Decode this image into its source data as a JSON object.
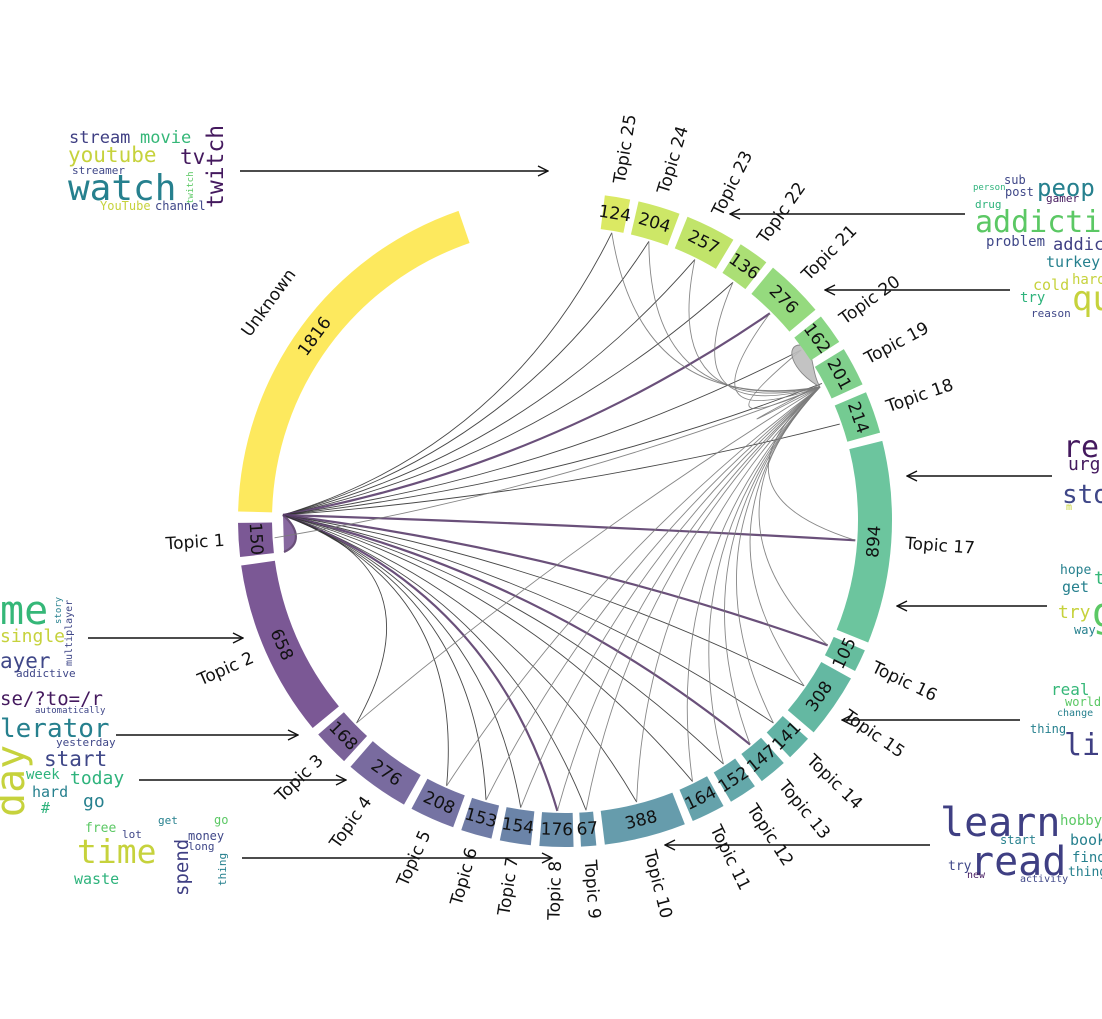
{
  "chart_data": {
    "type": "chord",
    "title": "",
    "segments": [
      {
        "label": "Unknown",
        "count": "1816",
        "color": "#fde95e"
      },
      {
        "label": "Topic 1",
        "count": "150",
        "color": "#7b5895"
      },
      {
        "label": "Topic 2",
        "count": "658",
        "color": "#7b5895"
      },
      {
        "label": "Topic 3",
        "count": "168",
        "color": "#7b6299"
      },
      {
        "label": "Topic 4",
        "count": "276",
        "color": "#796b9f"
      },
      {
        "label": "Topic 5",
        "count": "208",
        "color": "#7573a3"
      },
      {
        "label": "Topic 6",
        "count": "153",
        "color": "#707ca6"
      },
      {
        "label": "Topic 7",
        "count": "154",
        "color": "#6b84a8"
      },
      {
        "label": "Topic 8",
        "count": "176",
        "color": "#688ca9"
      },
      {
        "label": "Topic 9",
        "count": "67",
        "color": "#6694ab"
      },
      {
        "label": "Topic 10",
        "count": "388",
        "color": "#669cac"
      },
      {
        "label": "Topic 11",
        "count": "164",
        "color": "#65a2ab"
      },
      {
        "label": "Topic 12",
        "count": "152",
        "color": "#64a8aa"
      },
      {
        "label": "Topic 13",
        "count": "147",
        "color": "#63aea8"
      },
      {
        "label": "Topic 14",
        "count": "141",
        "color": "#62b3a5"
      },
      {
        "label": "Topic 15",
        "count": "308",
        "color": "#64b8a2"
      },
      {
        "label": "Topic 16",
        "count": "105",
        "color": "#66bd9e"
      },
      {
        "label": "Topic 17",
        "count": "894",
        "color": "#6cc59e"
      },
      {
        "label": "Topic 18",
        "count": "214",
        "color": "#74cb92"
      },
      {
        "label": "Topic 19",
        "count": "201",
        "color": "#80d08c"
      },
      {
        "label": "Topic 20",
        "count": "162",
        "color": "#8ad685"
      },
      {
        "label": "Topic 21",
        "count": "276",
        "color": "#95da7e"
      },
      {
        "label": "Topic 22",
        "count": "136",
        "color": "#abdf75"
      },
      {
        "label": "Topic 23",
        "count": "257",
        "color": "#c1e46a"
      },
      {
        "label": "Topic 24",
        "count": "204",
        "color": "#cde767"
      },
      {
        "label": "Topic 25",
        "count": "124",
        "color": "#dbe963"
      }
    ],
    "links": [
      {
        "from": "Topic 1",
        "to": "Topic 25",
        "weight": 1
      },
      {
        "from": "Topic 1",
        "to": "Topic 24",
        "weight": 1
      },
      {
        "from": "Topic 1",
        "to": "Topic 23",
        "weight": 1
      },
      {
        "from": "Topic 1",
        "to": "Topic 22",
        "weight": 1
      },
      {
        "from": "Topic 1",
        "to": "Topic 21",
        "weight": 3
      },
      {
        "from": "Topic 1",
        "to": "Topic 20",
        "weight": 1
      },
      {
        "from": "Topic 1",
        "to": "Topic 19",
        "weight": 1
      },
      {
        "from": "Topic 1",
        "to": "Topic 18",
        "weight": 1
      },
      {
        "from": "Topic 1",
        "to": "Topic 17",
        "weight": 3
      },
      {
        "from": "Topic 1",
        "to": "Topic 16",
        "weight": 3
      },
      {
        "from": "Topic 1",
        "to": "Topic 15",
        "weight": 1
      },
      {
        "from": "Topic 1",
        "to": "Topic 14",
        "weight": 1
      },
      {
        "from": "Topic 1",
        "to": "Topic 13",
        "weight": 3
      },
      {
        "from": "Topic 1",
        "to": "Topic 12",
        "weight": 1
      },
      {
        "from": "Topic 1",
        "to": "Topic 11",
        "weight": 1
      },
      {
        "from": "Topic 1",
        "to": "Topic 10",
        "weight": 1
      },
      {
        "from": "Topic 1",
        "to": "Topic 9",
        "weight": 1
      },
      {
        "from": "Topic 1",
        "to": "Topic 8",
        "weight": 3
      },
      {
        "from": "Topic 1",
        "to": "Topic 7",
        "weight": 1
      },
      {
        "from": "Topic 1",
        "to": "Topic 6",
        "weight": 1
      },
      {
        "from": "Topic 1",
        "to": "Topic 5",
        "weight": 1
      },
      {
        "from": "Topic 1",
        "to": "Topic 3",
        "weight": 1
      },
      {
        "from": "Topic 1",
        "to": "Topic 1",
        "weight": 3
      },
      {
        "from": "Topic 18",
        "to": "Topic 25",
        "weight": 1
      },
      {
        "from": "Topic 18",
        "to": "Topic 24",
        "weight": 1
      },
      {
        "from": "Topic 18",
        "to": "Topic 23",
        "weight": 1
      },
      {
        "from": "Topic 18",
        "to": "Topic 22",
        "weight": 1
      },
      {
        "from": "Topic 18",
        "to": "Topic 21",
        "weight": 1
      },
      {
        "from": "Topic 18",
        "to": "Topic 20",
        "weight": 1
      },
      {
        "from": "Topic 18",
        "to": "Topic 19",
        "weight": 1
      },
      {
        "from": "Topic 18",
        "to": "Topic 18",
        "weight": 1
      },
      {
        "from": "Topic 18",
        "to": "Topic 17",
        "weight": 1
      },
      {
        "from": "Topic 18",
        "to": "Topic 16",
        "weight": 1
      },
      {
        "from": "Topic 18",
        "to": "Topic 15",
        "weight": 1
      },
      {
        "from": "Topic 18",
        "to": "Topic 14",
        "weight": 1
      },
      {
        "from": "Topic 18",
        "to": "Topic 13",
        "weight": 1
      },
      {
        "from": "Topic 18",
        "to": "Topic 12",
        "weight": 1
      },
      {
        "from": "Topic 18",
        "to": "Topic 11",
        "weight": 1
      },
      {
        "from": "Topic 18",
        "to": "Topic 10",
        "weight": 1
      },
      {
        "from": "Topic 18",
        "to": "Topic 9",
        "weight": 1
      },
      {
        "from": "Topic 18",
        "to": "Topic 8",
        "weight": 1
      },
      {
        "from": "Topic 18",
        "to": "Topic 7",
        "weight": 1
      },
      {
        "from": "Topic 18",
        "to": "Topic 6",
        "weight": 1
      },
      {
        "from": "Topic 18",
        "to": "Topic 5",
        "weight": 1
      },
      {
        "from": "Topic 18",
        "to": "Topic 3",
        "weight": 1
      },
      {
        "from": "Topic 18",
        "to": "Topic 1",
        "weight": 1
      }
    ],
    "link_colors": {
      "thin": "#333333",
      "strong": "#5a3d6b",
      "topic18": "#7a7a7a"
    }
  },
  "wordclouds": [
    {
      "topic": "Topic 24",
      "words": [
        {
          "t": "stream",
          "c": "#3f3f83"
        },
        {
          "t": "movie",
          "c": "#35b778"
        },
        {
          "t": "youtube",
          "c": "#c6d23c"
        },
        {
          "t": "tv",
          "c": "#44195e"
        },
        {
          "t": "twitch",
          "c": "#44195e"
        },
        {
          "t": "watch",
          "c": "#26808e"
        },
        {
          "t": "streamer",
          "c": "#3f4788"
        },
        {
          "t": "twitch",
          "c": "#5bc864"
        },
        {
          "t": "YouTube",
          "c": "#c6d23c"
        },
        {
          "t": "channel",
          "c": "#3f4788"
        }
      ]
    },
    {
      "topic": "Topic 21",
      "words": [
        {
          "t": "person",
          "c": "#2eb37c"
        },
        {
          "t": "sub",
          "c": "#3f4788"
        },
        {
          "t": "post",
          "c": "#3f4788"
        },
        {
          "t": "peop",
          "c": "#26808e"
        },
        {
          "t": "drug",
          "c": "#2eb37c"
        },
        {
          "t": "gamer",
          "c": "#44195e"
        },
        {
          "t": "addictio",
          "c": "#5bc864"
        },
        {
          "t": "problem",
          "c": "#3f4788"
        },
        {
          "t": "addic",
          "c": "#3f3f83"
        }
      ]
    },
    {
      "topic": "Topic 19",
      "words": [
        {
          "t": "turkey",
          "c": "#26808e"
        },
        {
          "t": "hard",
          "c": "#c6d23c"
        },
        {
          "t": "cold",
          "c": "#c6d23c"
        },
        {
          "t": "qu",
          "c": "#c6d23c"
        },
        {
          "t": "try",
          "c": "#2eb37c"
        },
        {
          "t": "reason",
          "c": "#3f4788"
        }
      ]
    },
    {
      "topic": "Topic 17",
      "words": [
        {
          "t": "re",
          "c": "#44195e"
        },
        {
          "t": "urg",
          "c": "#44195e"
        },
        {
          "t": "sto",
          "c": "#3f4788"
        },
        {
          "t": "m",
          "c": "#c6d23c"
        }
      ]
    },
    {
      "topic": "Topic 16",
      "words": [
        {
          "t": "hope",
          "c": "#26808e"
        },
        {
          "t": "t",
          "c": "#35b778"
        },
        {
          "t": "get",
          "c": "#26808e"
        },
        {
          "t": "try",
          "c": "#c6d23c"
        },
        {
          "t": "g",
          "c": "#5bc864"
        },
        {
          "t": "way",
          "c": "#26808e"
        }
      ]
    },
    {
      "topic": "Topic 14",
      "words": [
        {
          "t": "real",
          "c": "#35b778"
        },
        {
          "t": "world",
          "c": "#5bc864"
        },
        {
          "t": "change",
          "c": "#26808e"
        },
        {
          "t": "thing",
          "c": "#26808e"
        },
        {
          "t": "li",
          "c": "#3f3f83"
        }
      ]
    },
    {
      "topic": "Topic 10",
      "words": [
        {
          "t": "learn",
          "c": "#3f3f83"
        },
        {
          "t": "hobby",
          "c": "#5bc864"
        },
        {
          "t": "start",
          "c": "#26808e"
        },
        {
          "t": "book",
          "c": "#26808e"
        },
        {
          "t": "read",
          "c": "#3f3f83"
        },
        {
          "t": "find",
          "c": "#26808e"
        },
        {
          "t": "try",
          "c": "#3f4788"
        },
        {
          "t": "new",
          "c": "#44195e"
        },
        {
          "t": "activity",
          "c": "#3f4788"
        },
        {
          "t": "thing",
          "c": "#26808e"
        }
      ]
    },
    {
      "topic": "Topic 2",
      "words": [
        {
          "t": "me",
          "c": "#35b778"
        },
        {
          "t": "story",
          "c": "#26808e"
        },
        {
          "t": "multiplayer",
          "c": "#3f4788"
        },
        {
          "t": "single",
          "c": "#c6d23c"
        },
        {
          "t": "ayer",
          "c": "#3f4788"
        },
        {
          "t": "addictive",
          "c": "#3f4788"
        }
      ]
    },
    {
      "topic": "Topic 3",
      "words": [
        {
          "t": "se/?to=/r",
          "c": "#44195e"
        },
        {
          "t": "automatically",
          "c": "#3f4788"
        },
        {
          "t": "lerator",
          "c": "#26808e"
        },
        {
          "t": "yesterday",
          "c": "#3f4788"
        }
      ]
    },
    {
      "topic": "Topic 4",
      "words": [
        {
          "t": "day",
          "c": "#c6d23c"
        },
        {
          "t": "start",
          "c": "#3f4788"
        },
        {
          "t": "week",
          "c": "#2eb37c"
        },
        {
          "t": "today",
          "c": "#2eb37c"
        },
        {
          "t": "hard",
          "c": "#26808e"
        },
        {
          "t": "go",
          "c": "#26808e"
        },
        {
          "t": "#",
          "c": "#2eb37c"
        }
      ]
    },
    {
      "topic": "Topic 8",
      "words": [
        {
          "t": "free",
          "c": "#5bc864"
        },
        {
          "t": "get",
          "c": "#26808e"
        },
        {
          "t": "go",
          "c": "#5bc864"
        },
        {
          "t": "lot",
          "c": "#3f4788"
        },
        {
          "t": "money",
          "c": "#3f4788"
        },
        {
          "t": "long",
          "c": "#3f4788"
        },
        {
          "t": "time",
          "c": "#c6d23c"
        },
        {
          "t": "spend",
          "c": "#3f3f83"
        },
        {
          "t": "thing",
          "c": "#26808e"
        },
        {
          "t": "waste",
          "c": "#2eb37c"
        }
      ]
    }
  ]
}
